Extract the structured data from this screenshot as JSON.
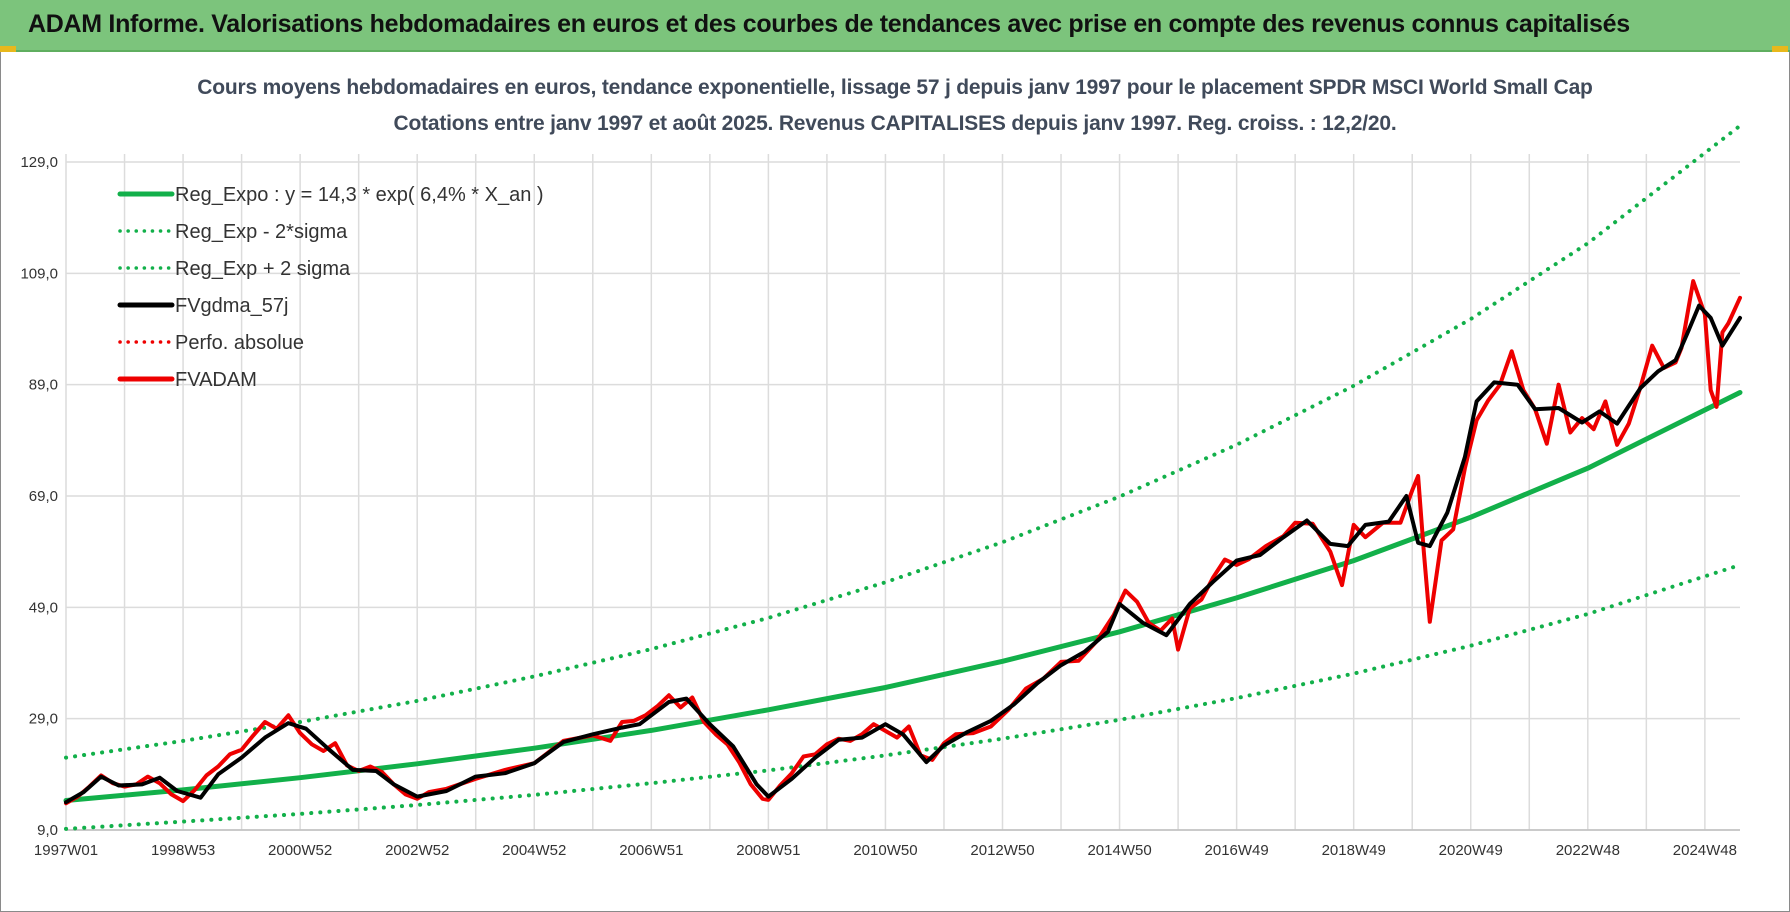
{
  "banner": {
    "title": "ADAM Informe. Valorisations hebdomadaires en euros et des courbes de tendances avec prise en compte des revenus connus capitalisés"
  },
  "colors": {
    "banner": "#7cc47c",
    "trend": "#12b04a",
    "sigma": "#12b04a",
    "smooth": "#000000",
    "price": "#ee0000",
    "abs": "#ee0000",
    "grid": "#dcdcdc"
  },
  "chart_data": {
    "type": "line",
    "title": "Cours moyens hebdomadaires en euros, tendance exponentielle, lissage 57 j depuis janv 1997 pour le placement SPDR MSCI World Small Cap",
    "subtitle": "Cotations entre janv 1997 et août 2025. Revenus CAPITALISES depuis janv 1997. Reg. croiss. : 12,2/20.",
    "xlabel": "",
    "ylabel": "",
    "ylim": [
      9,
      129
    ],
    "xlim": [
      1997.0,
      2025.6
    ],
    "grid": true,
    "legend_position": "top-left",
    "yticks": [
      "129,0",
      "109,0",
      "89,0",
      "69,0",
      "49,0",
      "29,0",
      "9,0"
    ],
    "ytick_values": [
      129,
      109,
      89,
      69,
      49,
      29,
      9
    ],
    "xticks": [
      "1997W01",
      "1998W53",
      "2000W52",
      "2002W52",
      "2004W52",
      "2006W51",
      "2008W51",
      "2010W50",
      "2012W50",
      "2014W50",
      "2016W49",
      "2018W49",
      "2020W49",
      "2022W48",
      "2024W48"
    ],
    "xtick_values": [
      1997.0,
      1999.0,
      2001.0,
      2003.0,
      2005.0,
      2007.0,
      2009.0,
      2011.0,
      2013.0,
      2015.0,
      2017.0,
      2019.0,
      2021.0,
      2023.0,
      2025.0
    ],
    "series": [
      {
        "name": "Reg_Expo : y = 14,3 * exp( 6,4% *  X_an )",
        "style": "solid",
        "color": "#12b04a",
        "width": 5,
        "x": [
          1997.0,
          1999.0,
          2001.0,
          2003.0,
          2005.0,
          2007.0,
          2009.0,
          2011.0,
          2013.0,
          2015.0,
          2017.0,
          2019.0,
          2021.0,
          2023.0,
          2025.6
        ],
        "y": [
          14.3,
          16.2,
          18.4,
          20.9,
          23.7,
          26.9,
          30.6,
          34.6,
          39.3,
          44.6,
          50.7,
          57.4,
          65.2,
          74.0,
          87.6
        ]
      },
      {
        "name": "Reg_Exp - 2*sigma",
        "style": "dotted",
        "color": "#12b04a",
        "width": 4,
        "x": [
          1997.0,
          1999.0,
          2001.0,
          2003.0,
          2005.0,
          2007.0,
          2009.0,
          2011.0,
          2013.0,
          2015.0,
          2017.0,
          2019.0,
          2021.0,
          2023.0,
          2025.6
        ],
        "y": [
          9.2,
          10.5,
          11.9,
          13.5,
          15.3,
          17.4,
          19.7,
          22.4,
          25.4,
          28.8,
          32.7,
          37.1,
          42.1,
          47.8,
          56.6
        ]
      },
      {
        "name": "Reg_Exp + 2 sigma",
        "style": "dotted",
        "color": "#12b04a",
        "width": 4,
        "x": [
          1997.0,
          1999.0,
          2001.0,
          2003.0,
          2005.0,
          2007.0,
          2009.0,
          2011.0,
          2013.0,
          2015.0,
          2017.0,
          2019.0,
          2021.0,
          2023.0,
          2025.6
        ],
        "y": [
          22.0,
          25.0,
          28.4,
          32.2,
          36.6,
          41.5,
          47.1,
          53.5,
          60.7,
          68.9,
          78.2,
          88.8,
          100.8,
          114.4,
          135.5
        ]
      },
      {
        "name": "FVgdma_57j",
        "style": "solid",
        "color": "#000000",
        "width": 4,
        "x": [
          1997.0,
          1997.3,
          1997.6,
          1997.9,
          1998.3,
          1998.6,
          1998.9,
          1999.3,
          1999.6,
          2000.0,
          2000.4,
          2000.8,
          2001.1,
          2001.5,
          2001.9,
          2002.3,
          2002.6,
          2003.0,
          2003.5,
          2004.0,
          2004.5,
          2005.0,
          2005.5,
          2006.0,
          2006.5,
          2006.8,
          2007.0,
          2007.3,
          2007.6,
          2008.0,
          2008.4,
          2008.8,
          2009.0,
          2009.4,
          2009.8,
          2010.2,
          2010.6,
          2011.0,
          2011.3,
          2011.7,
          2012.0,
          2012.4,
          2012.8,
          2013.2,
          2013.6,
          2014.0,
          2014.4,
          2014.8,
          2015.0,
          2015.4,
          2015.8,
          2016.2,
          2016.6,
          2017.0,
          2017.4,
          2017.8,
          2018.2,
          2018.6,
          2018.9,
          2019.2,
          2019.6,
          2019.9,
          2020.1,
          2020.3,
          2020.6,
          2020.9,
          2021.1,
          2021.4,
          2021.8,
          2022.1,
          2022.5,
          2022.9,
          2023.2,
          2023.5,
          2023.9,
          2024.2,
          2024.5,
          2024.7,
          2024.9,
          2025.1,
          2025.3,
          2025.6
        ],
        "y": [
          14.0,
          15.8,
          18.6,
          17.0,
          17.2,
          18.4,
          16.0,
          14.8,
          19.0,
          22.0,
          25.6,
          28.2,
          27.2,
          23.4,
          19.8,
          19.6,
          17.2,
          15.0,
          16.0,
          18.6,
          19.2,
          21.0,
          24.8,
          26.2,
          27.4,
          28.0,
          29.6,
          32.0,
          32.6,
          28.0,
          24.0,
          17.2,
          15.0,
          18.2,
          22.0,
          25.2,
          25.6,
          28.0,
          26.2,
          21.2,
          24.2,
          26.6,
          28.6,
          31.6,
          35.4,
          38.6,
          41.0,
          44.6,
          49.6,
          46.2,
          44.0,
          49.6,
          53.6,
          57.4,
          58.4,
          61.6,
          64.6,
          60.4,
          60.0,
          63.8,
          64.4,
          69.0,
          60.6,
          60.0,
          66.0,
          76.0,
          86.0,
          89.4,
          89.0,
          84.6,
          84.8,
          82.2,
          84.2,
          82.0,
          88.4,
          91.4,
          93.4,
          98.2,
          103.2,
          101.0,
          96.0,
          101.0
        ]
      },
      {
        "name": "Perfo. absolue",
        "style": "dotted",
        "color": "#ee0000",
        "width": 3,
        "x": [],
        "y": []
      },
      {
        "name": "FVADAM",
        "style": "solid",
        "color": "#ee0000",
        "width": 4,
        "x": [
          1997.0,
          1997.2,
          1997.4,
          1997.6,
          1997.8,
          1998.0,
          1998.2,
          1998.4,
          1998.6,
          1998.8,
          1999.0,
          1999.2,
          1999.4,
          1999.6,
          1999.8,
          2000.0,
          2000.2,
          2000.4,
          2000.6,
          2000.8,
          2001.0,
          2001.2,
          2001.4,
          2001.6,
          2001.8,
          2002.0,
          2002.2,
          2002.4,
          2002.6,
          2002.8,
          2003.0,
          2003.2,
          2003.5,
          2004.0,
          2004.5,
          2005.0,
          2005.5,
          2006.0,
          2006.3,
          2006.5,
          2006.7,
          2006.9,
          2007.1,
          2007.3,
          2007.5,
          2007.7,
          2007.9,
          2008.1,
          2008.3,
          2008.5,
          2008.7,
          2008.9,
          2009.0,
          2009.2,
          2009.4,
          2009.6,
          2009.8,
          2010.0,
          2010.2,
          2010.4,
          2010.6,
          2010.8,
          2011.0,
          2011.2,
          2011.4,
          2011.6,
          2011.8,
          2012.0,
          2012.2,
          2012.5,
          2012.8,
          2013.1,
          2013.4,
          2013.7,
          2014.0,
          2014.3,
          2014.6,
          2014.9,
          2015.1,
          2015.3,
          2015.5,
          2015.7,
          2015.9,
          2016.0,
          2016.2,
          2016.4,
          2016.6,
          2016.8,
          2017.0,
          2017.2,
          2017.5,
          2017.8,
          2018.0,
          2018.3,
          2018.6,
          2018.8,
          2019.0,
          2019.2,
          2019.5,
          2019.8,
          2020.0,
          2020.1,
          2020.2,
          2020.3,
          2020.5,
          2020.7,
          2020.9,
          2021.1,
          2021.3,
          2021.5,
          2021.7,
          2021.9,
          2022.1,
          2022.3,
          2022.5,
          2022.7,
          2022.9,
          2023.1,
          2023.3,
          2023.5,
          2023.7,
          2023.9,
          2024.1,
          2024.3,
          2024.5,
          2024.6,
          2024.8,
          2025.0,
          2025.1,
          2025.2,
          2025.3,
          2025.4,
          2025.6
        ],
        "y": [
          13.8,
          15.0,
          16.8,
          18.8,
          17.4,
          16.8,
          17.2,
          18.6,
          17.4,
          15.4,
          14.2,
          16.2,
          18.8,
          20.4,
          22.6,
          23.4,
          26.0,
          28.4,
          27.2,
          29.6,
          26.4,
          24.4,
          23.2,
          24.6,
          20.6,
          19.6,
          20.4,
          19.4,
          17.2,
          15.4,
          14.6,
          15.8,
          16.4,
          18.2,
          19.8,
          21.0,
          25.0,
          26.0,
          25.0,
          28.4,
          28.6,
          29.6,
          31.2,
          33.2,
          31.0,
          32.8,
          28.4,
          26.2,
          24.4,
          21.2,
          17.2,
          14.6,
          14.4,
          17.0,
          19.2,
          22.2,
          22.6,
          24.4,
          25.4,
          25.0,
          26.2,
          28.0,
          26.8,
          25.6,
          27.6,
          22.4,
          21.6,
          24.6,
          26.2,
          26.4,
          27.6,
          30.6,
          34.4,
          36.2,
          39.2,
          39.4,
          42.8,
          47.6,
          52.0,
          50.0,
          46.2,
          44.8,
          47.0,
          41.4,
          48.8,
          50.4,
          54.4,
          57.6,
          56.6,
          57.6,
          60.0,
          61.8,
          64.2,
          64.0,
          59.0,
          53.0,
          63.8,
          61.6,
          64.2,
          64.2,
          70.0,
          72.6,
          58.8,
          46.4,
          61.0,
          63.0,
          74.0,
          82.6,
          86.2,
          89.0,
          95.0,
          88.0,
          84.6,
          78.4,
          89.0,
          80.4,
          83.0,
          81.0,
          86.0,
          78.2,
          82.0,
          88.6,
          96.0,
          92.0,
          93.0,
          95.6,
          107.6,
          101.6,
          88.0,
          85.0,
          98.4,
          100.0,
          104.6
        ]
      }
    ]
  }
}
